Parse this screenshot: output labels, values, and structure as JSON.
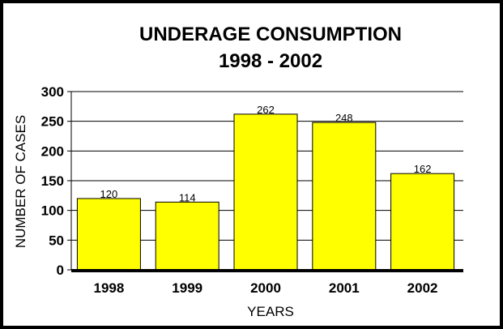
{
  "chart_data": {
    "type": "bar",
    "title": "UNDERAGE CONSUMPTION",
    "subtitle": "1998 - 2002",
    "categories": [
      "1998",
      "1999",
      "2000",
      "2001",
      "2002"
    ],
    "values": [
      120,
      114,
      262,
      248,
      162
    ],
    "data_labels": [
      "120",
      "114",
      "262",
      "248",
      "162"
    ],
    "xlabel": "YEARS",
    "ylabel": "NUMBER OF CASES",
    "ylim": [
      0,
      300
    ],
    "yticks": [
      "0",
      "50",
      "100",
      "150",
      "200",
      "250",
      "300"
    ],
    "grid": true,
    "bar_color": "#ffff00",
    "legend": "none"
  }
}
